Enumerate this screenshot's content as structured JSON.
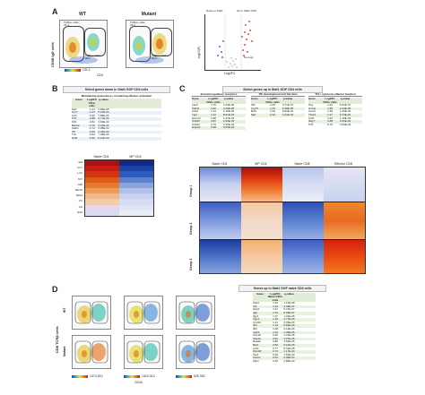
{
  "panels": {
    "a": "A",
    "b": "B",
    "c": "C",
    "d": "D"
  },
  "panel_a": {
    "wt_title": "WT",
    "mutant_title": "Mutant",
    "ylabel": "CD38 IgD cells",
    "xlabel": "CD4",
    "wt_gate1": "TCRα+ cells",
    "wt_gate1_val": "47.4",
    "wt_gate2": "TCRα+ CD4+",
    "wt_gate2_val": "39.1",
    "mut_gate1": "TCRα+ cells",
    "mut_gate1_val": "33.0",
    "mut_gate2": "TCRα+ CD4+",
    "mut_gate2_val": "30.4",
    "legend_val": "131.1",
    "volcano_ylabel": "-log10(P)",
    "volcano_xlabel": "Log2FC",
    "volcano_annot_left": "Down in Stat1",
    "volcano_annot_right": "Up in Stat1 GOF",
    "volcano_annot_center": "Non-sig"
  },
  "panel_b": {
    "banner": "Select genes down in Stat1 GOF CD4 cells",
    "subtitle": "Maintaining quiescence / restraining effector activation",
    "headers": [
      "Gene",
      "Log2FC CD4+ cells",
      "q-value"
    ],
    "rows": [
      [
        "Sell",
        "-1.21",
        "2.84E-05"
      ],
      [
        "Ccr7",
        "-1.07",
        "5.12E-04"
      ],
      [
        "Lef1",
        "-0.93",
        "1.86E-03"
      ],
      [
        "Tcf7",
        "-0.88",
        "2.77E-03"
      ],
      [
        "Klf2",
        "-0.81",
        "3.64E-03"
      ],
      [
        "Bach2",
        "-0.76",
        "4.21E-03"
      ],
      [
        "Satb1",
        "-0.72",
        "5.08E-03"
      ],
      [
        "Il7r",
        "-0.69",
        "6.33E-03"
      ],
      [
        "Txk",
        "-0.64",
        "7.45E-03"
      ],
      [
        "Ikzf2",
        "-0.60",
        "8.12E-03"
      ]
    ]
  },
  "panel_b_heatmap": {
    "columns": [
      "Naive CD4",
      "MP CD4"
    ],
    "genes": [
      "Sell",
      "Ccr7",
      "Lef1",
      "Tcf7",
      "Klf2",
      "Bach2",
      "Satb1",
      "Il7r",
      "Txk",
      "Ikzf2"
    ]
  },
  "panel_c": {
    "banner": "Select genes up in Stat1 GOF CD4 cells",
    "sections": [
      {
        "title": "Immunoregulatory receptors",
        "headers": [
          "Gene",
          "Log2FC CD4+ cells",
          "q-value"
        ],
        "rows": [
          [
            "Lag3",
            "1.75",
            "1.03E-06"
          ],
          [
            "Pdcd1",
            "1.52",
            "4.40E-05"
          ],
          [
            "Ctla4",
            "1.31",
            "2.18E-04"
          ],
          [
            "Tigit",
            "1.12",
            "8.91E-04"
          ],
          [
            "Havcr2",
            "0.98",
            "1.47E-03"
          ],
          [
            "Cd160",
            "0.87",
            "2.69E-03"
          ],
          [
            "Cd244",
            "0.79",
            "3.32E-03"
          ],
          [
            "Entpd1",
            "0.68",
            "5.55E-03"
          ]
        ]
      },
      {
        "title": "Tfh development and function",
        "headers": [
          "Gene",
          "Log2FC CD4+ cells",
          "q-value"
        ],
        "rows": [
          [
            "Il21",
            "2.03",
            "3.71E-07"
          ],
          [
            "Cxcr5",
            "1.44",
            "6.28E-05"
          ],
          [
            "Bcl6",
            "1.06",
            "9.93E-04"
          ],
          [
            "Maf",
            "0.94",
            "1.61E-03"
          ]
        ]
      },
      {
        "title": "Th1 / cytotoxic effector function",
        "headers": [
          "Gene",
          "Log2FC CD4+ cells",
          "q-value"
        ],
        "rows": [
          [
            "Ifng",
            "1.91",
            "5.02E-07"
          ],
          [
            "Gzmk",
            "1.66",
            "2.44E-05"
          ],
          [
            "Cxcr3",
            "1.38",
            "1.25E-04"
          ],
          [
            "Tbx21",
            "1.17",
            "6.73E-04"
          ],
          [
            "Ccl5",
            "1.02",
            "1.18E-03"
          ],
          [
            "Nkg7",
            "0.89",
            "2.41E-03"
          ],
          [
            "Prf1",
            "0.73",
            "4.60E-03"
          ]
        ]
      }
    ]
  },
  "panel_c_heatmap": {
    "columns": [
      "Naive CD4",
      "MP CD4",
      "Naive CD8",
      "Effector CD8"
    ],
    "groups": [
      "Group 1",
      "Group 2",
      "Group 3"
    ]
  },
  "panel_d": {
    "wt_label": "WT",
    "mutant_label": "Mutant",
    "ylabel": "CD8 TCRβ cells",
    "xlabel": "CD44",
    "legend_vals": [
      "1474.512",
      "1424.312",
      "525.352"
    ],
    "banner": "Genes up in Stat1 GOF naive CD4 cells",
    "headers": [
      "Gene",
      "Log2FC Naive CD4+ cells",
      "q-value"
    ],
    "rows": [
      [
        "Stat1",
        "1.92",
        "1.12E-08"
      ],
      [
        "Irf1",
        "1.64",
        "3.40E-07"
      ],
      [
        "Gbp2",
        "1.51",
        "5.21E-07"
      ],
      [
        "Igtp",
        "1.43",
        "8.96E-07"
      ],
      [
        "Iigp1",
        "1.37",
        "1.32E-06"
      ],
      [
        "Irgm1",
        "1.29",
        "2.77E-06"
      ],
      [
        "Cxcl10",
        "1.21",
        "4.45E-06"
      ],
      [
        "Ifit1",
        "1.14",
        "6.83E-06"
      ],
      [
        "Ifit3",
        "1.08",
        "9.12E-06"
      ],
      [
        "Isg15",
        "1.02",
        "1.46E-05"
      ],
      [
        "Usp18",
        "0.96",
        "2.31E-05"
      ],
      [
        "Oas1a",
        "0.91",
        "3.07E-05"
      ],
      [
        "Rsad2",
        "0.86",
        "4.52E-05"
      ],
      [
        "Bst2",
        "0.82",
        "6.10E-05"
      ],
      [
        "Ly6a",
        "0.77",
        "8.41E-05"
      ],
      [
        "Psmb8",
        "0.73",
        "1.17E-04"
      ],
      [
        "Tap1",
        "0.69",
        "1.53E-04"
      ],
      [
        "Socs1",
        "0.64",
        "2.08E-04"
      ],
      [
        "Zbp1",
        "0.60",
        "2.86E-04"
      ]
    ]
  }
}
